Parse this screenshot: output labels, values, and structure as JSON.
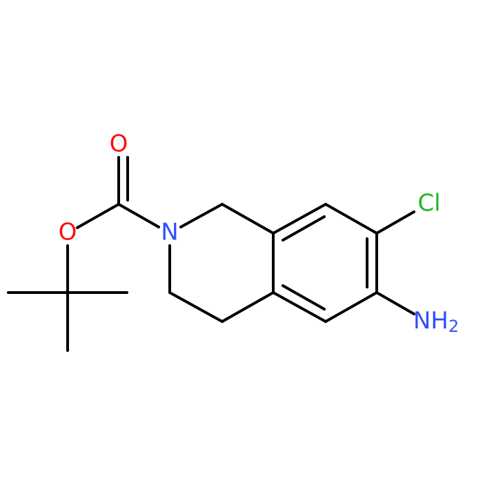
{
  "atoms": [
    {
      "label": "O"
    },
    {
      "label": "O"
    },
    {
      "label": "N"
    },
    {
      "label": "Cl"
    },
    {
      "label": "NH",
      "subscript": "2"
    }
  ]
}
